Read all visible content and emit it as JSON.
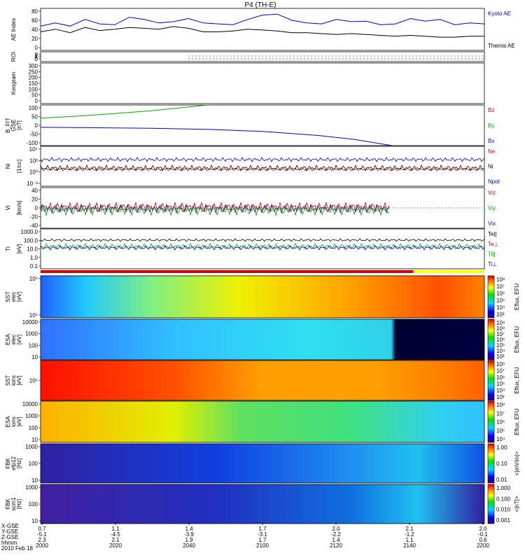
{
  "chart_data": [
    {
      "type": "line",
      "title": "P4 (TH-E)",
      "ylabel": "AE Index",
      "yticks": [
        "80",
        "60",
        "40",
        "20",
        "0"
      ],
      "ylim": [
        -10,
        85
      ],
      "x": [
        0,
        4,
        8,
        12,
        16,
        20,
        24,
        28,
        32,
        36,
        40,
        44,
        48,
        52,
        56,
        60,
        64,
        68,
        72,
        76,
        80,
        84,
        88,
        92,
        96,
        100,
        104,
        108,
        112,
        116,
        120
      ],
      "series": [
        {
          "name": "Kyoto AE",
          "color": "#0000cc",
          "values": [
            45,
            52,
            45,
            60,
            50,
            48,
            65,
            60,
            52,
            55,
            62,
            52,
            50,
            48,
            60,
            70,
            72,
            58,
            52,
            50,
            60,
            55,
            56,
            48,
            50,
            62,
            56,
            60,
            48,
            52,
            50
          ]
        },
        {
          "name": "Themis AE",
          "color": "#000000",
          "values": [
            32,
            38,
            30,
            42,
            35,
            38,
            42,
            40,
            38,
            44,
            40,
            32,
            32,
            34,
            38,
            36,
            34,
            30,
            30,
            28,
            26,
            28,
            26,
            24,
            22,
            24,
            22,
            20,
            20,
            22,
            22
          ]
        }
      ]
    },
    {
      "type": "line",
      "ylabel": "ROI",
      "yticks": [
        "8",
        "4",
        "0"
      ]
    },
    {
      "type": "line",
      "ylabel": "Keogram",
      "yticks": [
        "300",
        "250",
        "200",
        "150",
        "100",
        "50",
        "0"
      ]
    },
    {
      "type": "line",
      "ylabel": "B_FIT",
      "ylabel2": "GSE",
      "unit": "[nT]",
      "yticks": [
        "100",
        "50",
        "0",
        "-50",
        "-100"
      ],
      "ylim": [
        -100,
        100
      ],
      "series": [
        {
          "name": "Bz",
          "color": "#cc0000",
          "values": []
        },
        {
          "name": "By",
          "color": "#00aa00",
          "x": [
            0,
            10,
            20,
            30,
            40,
            45
          ],
          "values": [
            35,
            45,
            58,
            72,
            90,
            100
          ]
        },
        {
          "name": "Bx",
          "color": "#0000cc",
          "x": [
            0,
            15,
            30,
            45,
            60,
            75,
            85,
            95
          ],
          "values": [
            -10,
            -12,
            -15,
            -20,
            -30,
            -50,
            -70,
            -100
          ]
        }
      ]
    },
    {
      "type": "line",
      "ylabel": "Ni",
      "unit": "[1/cc]",
      "yticks": [
        "10⁴",
        "10²",
        "10⁰",
        "10⁻²"
      ],
      "scale": "log",
      "series": [
        {
          "name": "Ne",
          "color": "#cc0000"
        },
        {
          "name": "Ni",
          "color": "#000000"
        },
        {
          "name": "Npot",
          "color": "#0000cc"
        }
      ]
    },
    {
      "type": "line",
      "ylabel": "Vi",
      "unit": "[km/s]",
      "yticks": [
        "40",
        "20",
        "0",
        "-20",
        "-40"
      ],
      "series": [
        {
          "name": "Viz",
          "color": "#cc0000"
        },
        {
          "name": "Viy",
          "color": "#00aa00"
        },
        {
          "name": "Vix",
          "color": "#0000cc"
        }
      ]
    },
    {
      "type": "line",
      "ylabel": "Ti",
      "unit": "[eV]",
      "yticks": [
        "1000.0",
        "100.0",
        "10.0",
        "1.0",
        "0.1"
      ],
      "scale": "log",
      "series": [
        {
          "name": "Te||",
          "color": "#000000"
        },
        {
          "name": "Te⊥",
          "color": "#cc0000"
        },
        {
          "name": "Ti||",
          "color": "#00aa00"
        },
        {
          "name": "Ti⊥",
          "color": "#0000cc"
        }
      ]
    },
    {
      "type": "heatmap",
      "ylabel": "SST",
      "ylabel2": "elec",
      "unit": "[eV]",
      "yticks": [
        "10⁶",
        "10⁵"
      ],
      "cbar": [
        "10⁸",
        "10⁷",
        "10⁶",
        "10⁵",
        "10⁴",
        "10³"
      ],
      "cbar_label": "Eflux, EFU"
    },
    {
      "type": "heatmap",
      "ylabel": "ESA",
      "ylabel2": "elec",
      "unit": "[eV]",
      "yticks": [
        "10000",
        "1000",
        "100",
        "10"
      ],
      "cbar": [
        "10⁹",
        "10⁸",
        "10⁷",
        "10⁶",
        "10⁵",
        "10⁴",
        "10³"
      ],
      "cbar_label": "Eflux, EFU"
    },
    {
      "type": "heatmap",
      "ylabel": "SST",
      "ylabel2": "ions",
      "unit": "[eV]",
      "yticks": [
        "10⁵"
      ],
      "cbar": [
        "10⁸",
        "10⁷",
        "10⁶",
        "10⁵",
        "10⁴",
        "10³"
      ],
      "cbar_label": "Eflux, EFU"
    },
    {
      "type": "heatmap",
      "ylabel": "ESA",
      "ylabel2": "ions",
      "unit": "[eV]",
      "yticks": [
        "10000",
        "1000",
        "100",
        "10"
      ],
      "cbar": [
        "10⁸",
        "10⁷",
        "10⁶",
        "10⁵",
        "10⁴"
      ],
      "cbar_label": "Eflux, EFU"
    },
    {
      "type": "heatmap",
      "ylabel": "FBK",
      "ylabel2": "efp12",
      "unit": "[Hz]",
      "yticks": [
        "1000",
        "100",
        "10"
      ],
      "cbar": [
        "1.00",
        "0.10",
        "0.01"
      ],
      "cbar_label": "<|mV/m|>"
    },
    {
      "type": "heatmap",
      "ylabel": "FBK",
      "ylabel2": "scm1",
      "unit": "[Hz]",
      "yticks": [
        "1000",
        "100",
        "10"
      ],
      "cbar": [
        "1.000",
        "0.100",
        "0.010",
        "0.001"
      ],
      "cbar_label": "<|nT|>"
    }
  ],
  "xaxis": {
    "row_labels": [
      "X-GSE",
      "Y-GSE",
      "Z-GSE",
      "hhmm",
      "2010 Feb 18"
    ],
    "ticks": [
      {
        "x": "0.7",
        "y": "-5.1",
        "z": "2.3",
        "t": "2000"
      },
      {
        "x": "1.1",
        "y": "-4.5",
        "z": "2.1",
        "t": "2020"
      },
      {
        "x": "1.4",
        "y": "-3.9",
        "z": "1.9",
        "t": "2040"
      },
      {
        "x": "1.7",
        "y": "-3.1",
        "z": "1.7",
        "t": "2100"
      },
      {
        "x": "2.0",
        "y": "-2.2",
        "z": "1.4",
        "t": "2120"
      },
      {
        "x": "2.1",
        "y": "-1.2",
        "z": "1.1",
        "t": "2140"
      },
      {
        "x": "2.0",
        "y": "-0.1",
        "z": "0.6",
        "t": "2200"
      }
    ]
  },
  "colors": {
    "blue": "#0000cc",
    "red": "#cc0000",
    "green": "#00aa00",
    "black": "#000000"
  }
}
